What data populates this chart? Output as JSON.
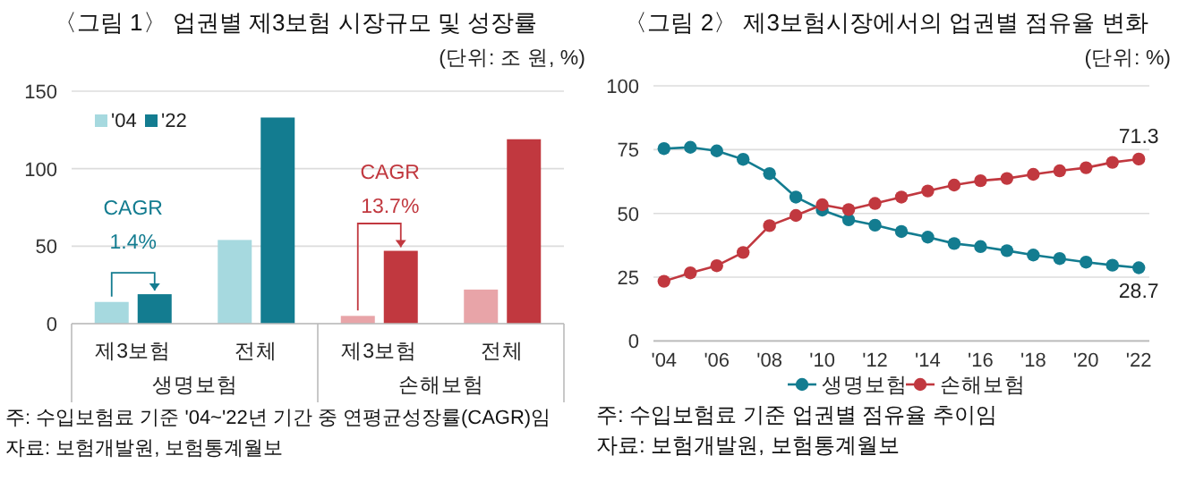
{
  "chart_data": [
    {
      "type": "bar",
      "title": "〈그림 1〉 업권별 제3보험 시장규모 및 성장률",
      "subtitle": "(단위: 조 원, %)",
      "categories": [
        "제3보험",
        "전체",
        "제3보험",
        "전체"
      ],
      "series": [
        {
          "name": "'04",
          "color": "#a6d9df",
          "colors": [
            "#a6d9df",
            "#a6d9df",
            "#e8a4a8",
            "#e8a4a8"
          ],
          "values": [
            14,
            54,
            5,
            22
          ]
        },
        {
          "name": "'22",
          "color": "#137c90",
          "colors": [
            "#137c90",
            "#137c90",
            "#c1383f",
            "#c1383f"
          ],
          "values": [
            19,
            133,
            47,
            119
          ]
        }
      ],
      "ylim": [
        0,
        150
      ],
      "yticks": [
        0,
        50,
        100,
        150
      ],
      "grid": "y",
      "legend": "top left",
      "annotations": [
        "CAGR",
        "1.4%",
        "CAGR",
        "13.7%",
        "생명보험",
        "손해보험",
        "주: 수입보험료 기준 '04~'22년 기간 중 연평균성장률(CAGR)임",
        "자료: 보험개발원, 보험통계월보"
      ]
    },
    {
      "type": "line",
      "title": "〈그림 2〉 제3보험시장에서의 업권별 점유율 변화",
      "subtitle": "(단위: %)",
      "x": [
        2004,
        2005,
        2006,
        2007,
        2008,
        2009,
        2010,
        2011,
        2012,
        2013,
        2014,
        2015,
        2016,
        2017,
        2018,
        2019,
        2020,
        2021,
        2022
      ],
      "series": [
        {
          "name": "생명보험",
          "color": "#137c90",
          "values": [
            75.4,
            75.9,
            74.5,
            71.2,
            65.6,
            56.4,
            51.3,
            47.5,
            45.4,
            42.9,
            40.7,
            38.2,
            37.0,
            35.4,
            33.7,
            32.3,
            30.9,
            29.7,
            28.7
          ],
          "value_labels": [
            null,
            null,
            null,
            null,
            null,
            null,
            null,
            null,
            null,
            null,
            null,
            null,
            null,
            null,
            null,
            null,
            null,
            null,
            "28.7"
          ]
        },
        {
          "name": "손해보험",
          "color": "#c1383f",
          "values": [
            23.4,
            26.7,
            29.5,
            34.7,
            45.2,
            49.2,
            53.4,
            51.5,
            53.9,
            56.4,
            58.8,
            61.1,
            62.8,
            63.7,
            65.3,
            66.7,
            67.9,
            70.0,
            71.3
          ],
          "value_labels": [
            null,
            null,
            null,
            null,
            null,
            null,
            null,
            null,
            null,
            null,
            null,
            null,
            null,
            null,
            null,
            null,
            null,
            null,
            "71.3"
          ]
        }
      ],
      "xlim": [
        2003.6,
        2022.4
      ],
      "xticks": [
        {
          "value": 2004,
          "label": "'04"
        },
        {
          "value": 2006,
          "label": "'06"
        },
        {
          "value": 2008,
          "label": "'08"
        },
        {
          "value": 2010,
          "label": "'10"
        },
        {
          "value": 2012,
          "label": "'12"
        },
        {
          "value": 2014,
          "label": "'14"
        },
        {
          "value": 2016,
          "label": "'16"
        },
        {
          "value": 2018,
          "label": "'18"
        },
        {
          "value": 2020,
          "label": "'20"
        },
        {
          "value": 2022,
          "label": "'22"
        }
      ],
      "ylim": [
        0,
        100
      ],
      "yticks": [
        0,
        25,
        50,
        75,
        100
      ],
      "grid": "y",
      "legend": "bottom",
      "marker": "circle",
      "line_style": "solid",
      "annotations": [
        "주: 수입보험료 기준 업권별 점유율 추이임",
        "자료: 보험개발원, 보험통계월보"
      ]
    }
  ]
}
